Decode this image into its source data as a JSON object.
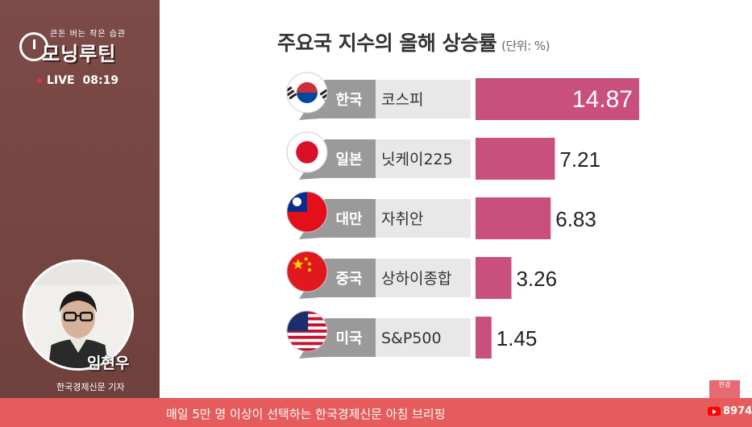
{
  "left_panel": {
    "tagline": "큰돈 버는 작은 습관",
    "brand": "모닝루틴",
    "live_label": "LIVE",
    "live_time": "08:19",
    "reporter_name": "임현우",
    "reporter_title": "한국경제신문 기자"
  },
  "chart_title": "주요국 지수의 올해 상승률",
  "chart_unit": "(단위: %)",
  "chart_data": {
    "type": "bar",
    "orientation": "horizontal",
    "title": "주요국 지수의 올해 상승률",
    "unit": "(단위: %)",
    "categories": [
      "코스피",
      "닛케이225",
      "자취안",
      "상하이종합",
      "S&P500"
    ],
    "countries": [
      "한국",
      "일본",
      "대만",
      "중국",
      "미국"
    ],
    "values": [
      14.87,
      7.21,
      6.83,
      3.26,
      1.45
    ],
    "value_labels": [
      "14.87",
      "7.21",
      "6.83",
      "3.26",
      "1.45"
    ],
    "bar_color": "#c94f7c",
    "flag_icons": [
      "korea-flag-icon",
      "japan-flag-icon",
      "taiwan-flag-icon",
      "china-flag-icon",
      "usa-flag-icon"
    ]
  },
  "ticker": {
    "text": "매일 5만 명 이상이 선택하는 한국경제신문 아침 브리핑",
    "viewers": "8974",
    "corner_badge": "한경"
  }
}
